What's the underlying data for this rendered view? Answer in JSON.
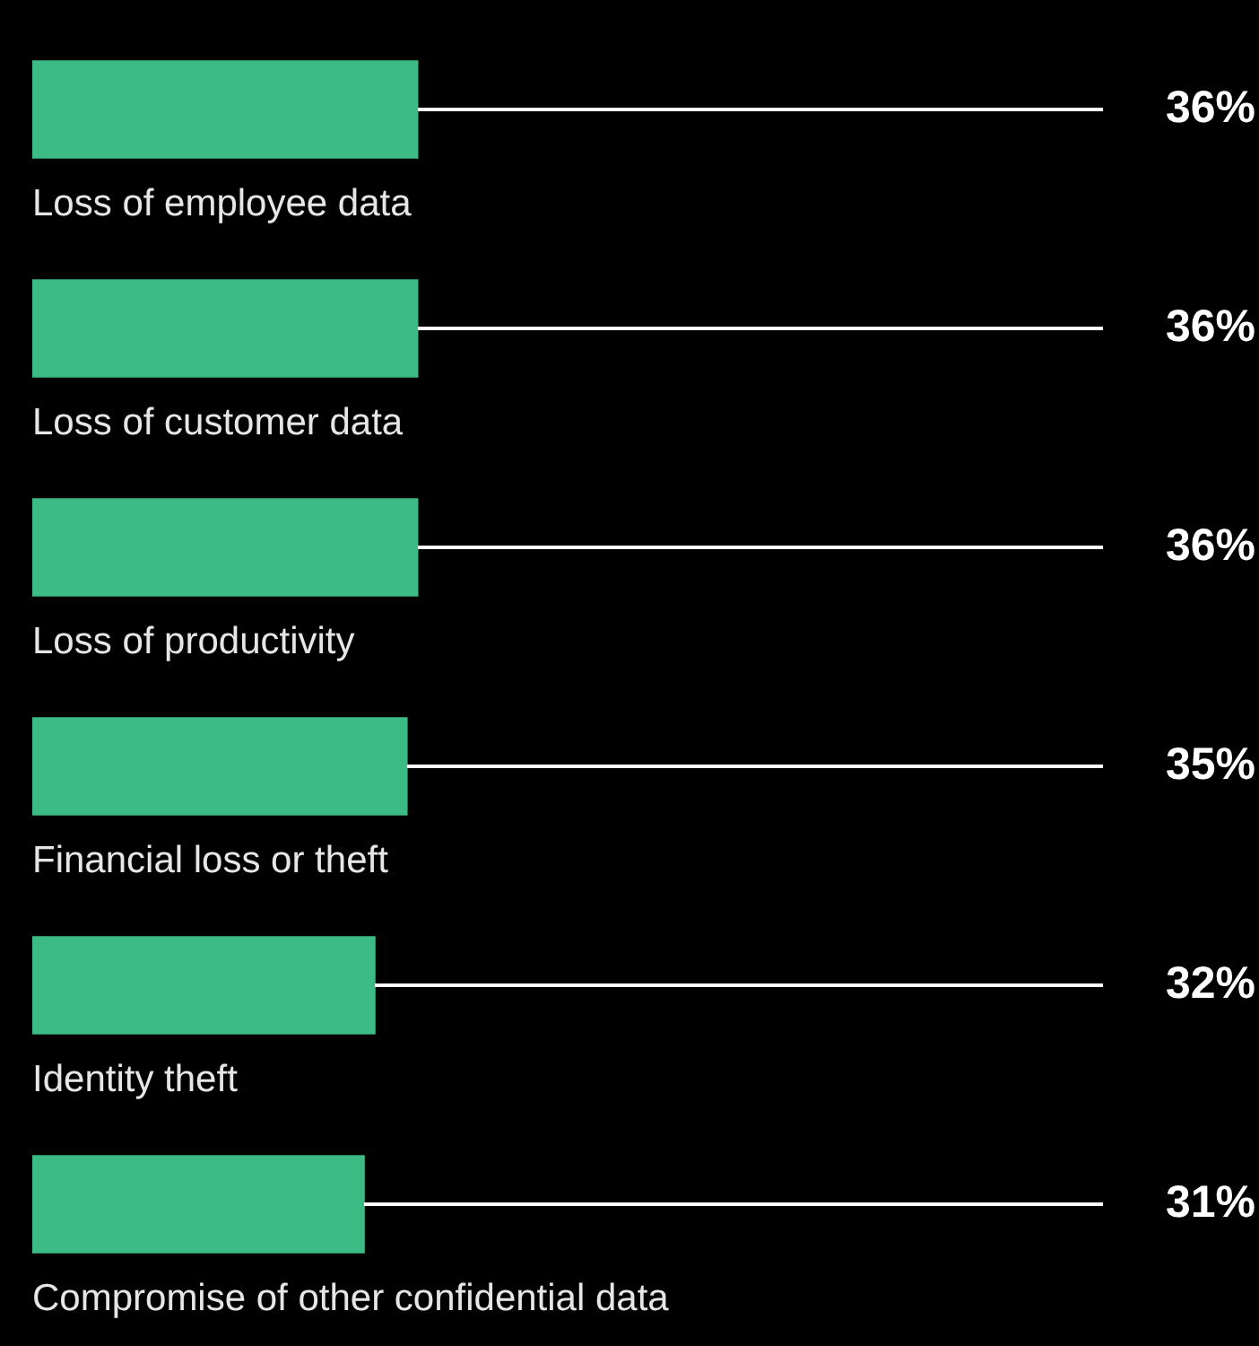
{
  "chart_data": {
    "type": "bar",
    "orientation": "horizontal",
    "categories": [
      "Loss of employee data",
      "Loss of customer data",
      "Loss of productivity",
      "Financial loss or theft",
      "Identity theft",
      "Compromise of other confidential data"
    ],
    "values": [
      36,
      36,
      36,
      35,
      32,
      31
    ],
    "value_labels": [
      "36%",
      "36%",
      "36%",
      "35%",
      "32%",
      "31%"
    ],
    "color": "#3dbb84",
    "xlim": [
      0,
      100
    ],
    "tick_labels": false,
    "grid": false,
    "legend": false
  }
}
